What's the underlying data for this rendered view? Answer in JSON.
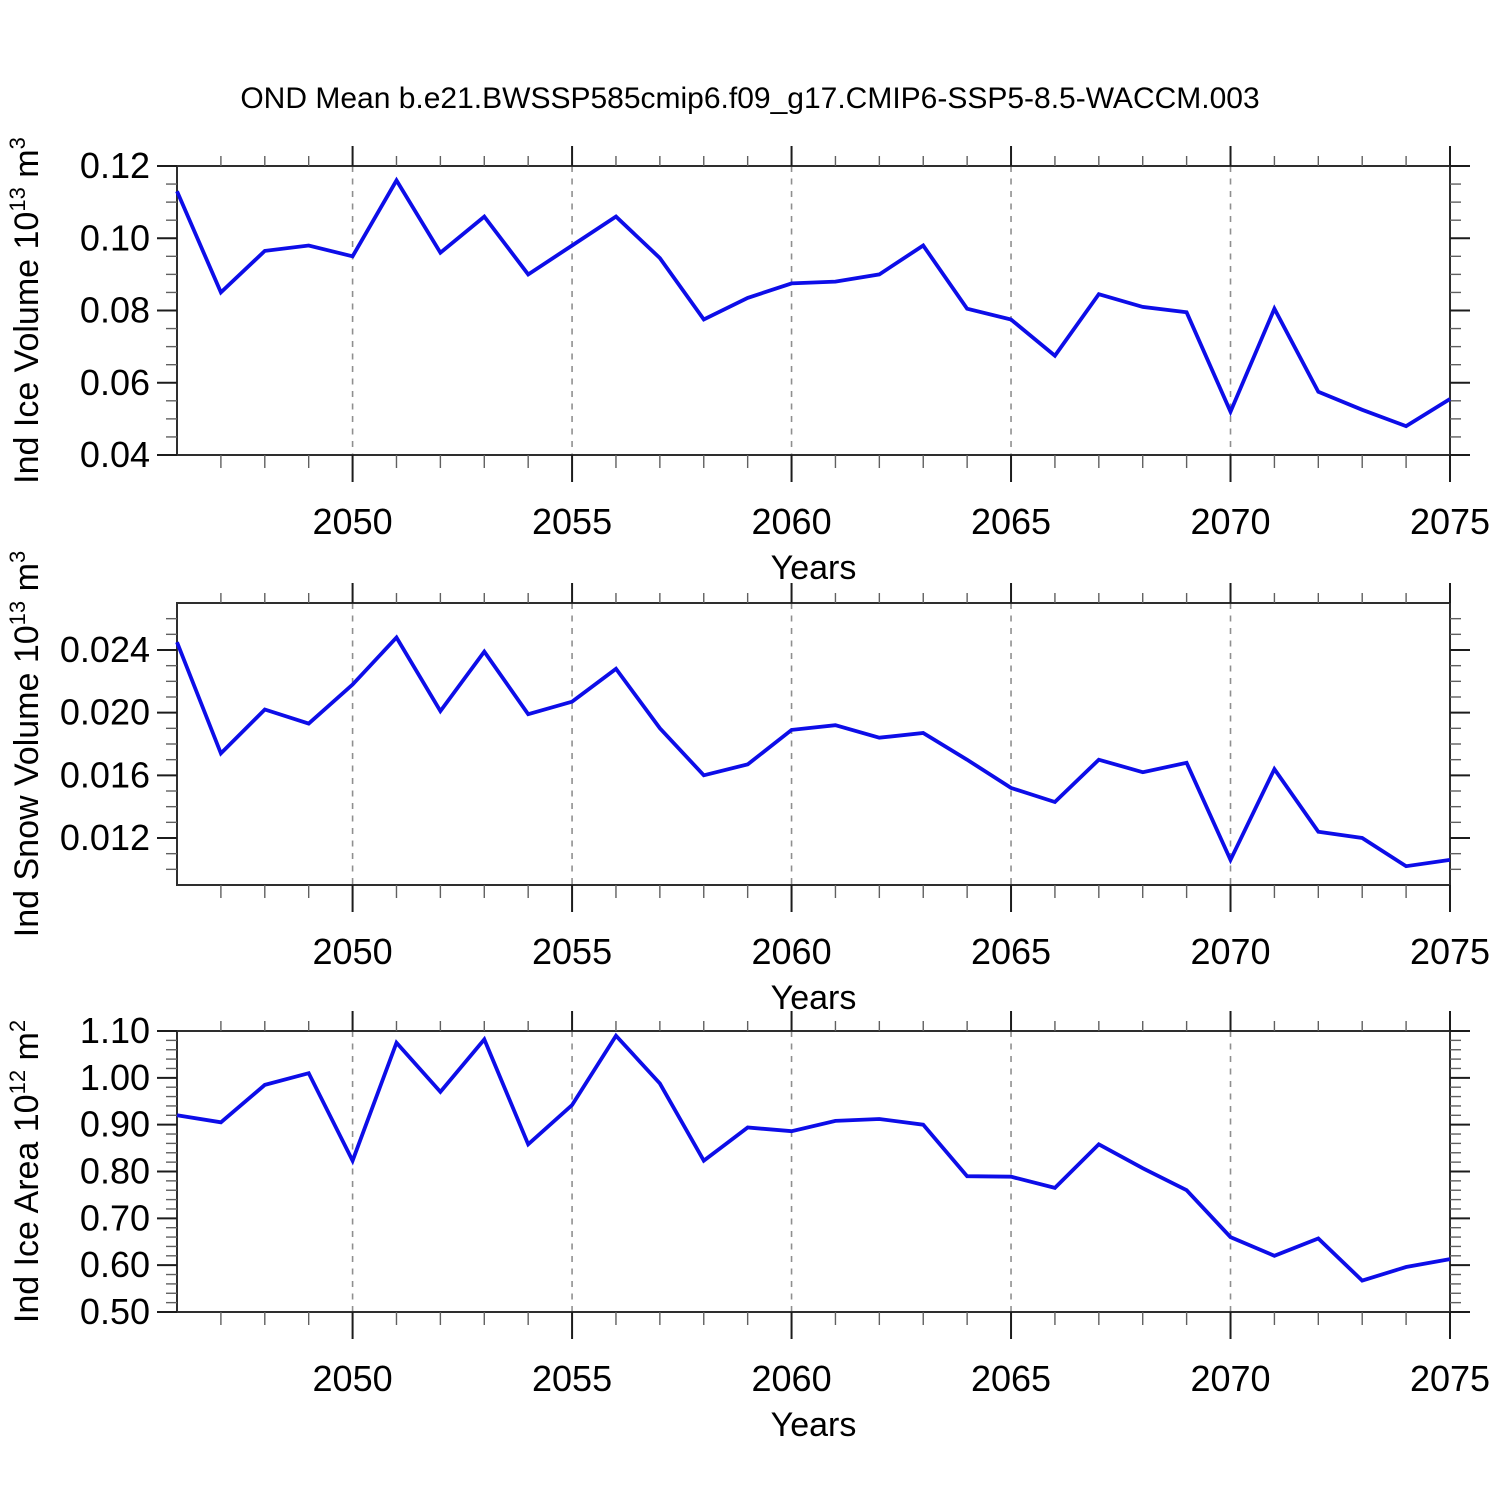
{
  "title": "OND Mean b.e21.BWSSP585cmip6.f09_g17.CMIP6-SSP5-8.5-WACCM.003",
  "colors": {
    "line": "#0d0de8",
    "frame": "#2e2e2e",
    "grid": "#8f8f8f",
    "text": "#000000"
  },
  "chart_data": [
    {
      "type": "line",
      "xlabel": "Years",
      "ylabel_text": "Ind Ice Volume 10^13 m^3",
      "ylabel_segments": [
        {
          "t": "Ind Ice Volume 10"
        },
        {
          "t": "13",
          "sup": true
        },
        {
          "t": " m"
        },
        {
          "t": "3",
          "sup": true
        }
      ],
      "x": [
        2046,
        2047,
        2048,
        2049,
        2050,
        2051,
        2052,
        2053,
        2054,
        2055,
        2056,
        2057,
        2058,
        2059,
        2060,
        2061,
        2062,
        2063,
        2064,
        2065,
        2066,
        2067,
        2068,
        2069,
        2070,
        2071,
        2072,
        2073,
        2074,
        2075
      ],
      "values": [
        0.113,
        0.085,
        0.0965,
        0.098,
        0.095,
        0.116,
        0.096,
        0.106,
        0.09,
        0.098,
        0.106,
        0.0945,
        0.0775,
        0.0835,
        0.0875,
        0.088,
        0.09,
        0.098,
        0.0805,
        0.0775,
        0.0675,
        0.0845,
        0.081,
        0.0795,
        0.052,
        0.0805,
        0.0575,
        0.0525,
        0.048,
        0.0555
      ],
      "xlim": [
        2046,
        2075
      ],
      "ylim": [
        0.04,
        0.12
      ],
      "xticks": [
        2050,
        2055,
        2060,
        2065,
        2070,
        2075
      ],
      "xtick_labels": [
        "2050",
        "2055",
        "2060",
        "2065",
        "2070",
        "2075"
      ],
      "x_minor_step": 1,
      "yticks": [
        0.04,
        0.06,
        0.08,
        0.1,
        0.12
      ],
      "ytick_labels": [
        "0.04",
        "0.06",
        "0.08",
        "0.10",
        "0.12"
      ],
      "y_minor_step": 0.005,
      "grid_x": [
        2050,
        2055,
        2060,
        2065,
        2070
      ],
      "grid_style": "vertical-dashed",
      "legend": "none"
    },
    {
      "type": "line",
      "xlabel": "Years",
      "ylabel_text": "Ind Snow Volume 10^13 m^3",
      "ylabel_segments": [
        {
          "t": "Ind Snow Volume 10"
        },
        {
          "t": "13",
          "sup": true
        },
        {
          "t": " m"
        },
        {
          "t": "3",
          "sup": true
        }
      ],
      "x": [
        2046,
        2047,
        2048,
        2049,
        2050,
        2051,
        2052,
        2053,
        2054,
        2055,
        2056,
        2057,
        2058,
        2059,
        2060,
        2061,
        2062,
        2063,
        2064,
        2065,
        2066,
        2067,
        2068,
        2069,
        2070,
        2071,
        2072,
        2073,
        2074,
        2075
      ],
      "values": [
        0.0245,
        0.0174,
        0.0202,
        0.0193,
        0.0218,
        0.0248,
        0.0201,
        0.0239,
        0.0199,
        0.0207,
        0.0228,
        0.019,
        0.016,
        0.0167,
        0.0189,
        0.0192,
        0.0184,
        0.0187,
        0.017,
        0.0152,
        0.0143,
        0.017,
        0.0162,
        0.0168,
        0.0106,
        0.0164,
        0.0124,
        0.012,
        0.0102,
        0.0106
      ],
      "xlim": [
        2046,
        2075
      ],
      "ylim": [
        0.009,
        0.027
      ],
      "xticks": [
        2050,
        2055,
        2060,
        2065,
        2070,
        2075
      ],
      "xtick_labels": [
        "2050",
        "2055",
        "2060",
        "2065",
        "2070",
        "2075"
      ],
      "x_minor_step": 1,
      "yticks": [
        0.012,
        0.016,
        0.02,
        0.024
      ],
      "ytick_labels": [
        "0.012",
        "0.016",
        "0.020",
        "0.024"
      ],
      "y_minor_step": 0.001,
      "grid_x": [
        2050,
        2055,
        2060,
        2065,
        2070
      ],
      "grid_style": "vertical-dashed",
      "legend": "none"
    },
    {
      "type": "line",
      "xlabel": "Years",
      "ylabel_text": "Ind Ice Area 10^12 m^2",
      "ylabel_segments": [
        {
          "t": "Ind Ice Area 10"
        },
        {
          "t": "12",
          "sup": true
        },
        {
          "t": " m"
        },
        {
          "t": "2",
          "sup": true
        }
      ],
      "x": [
        2046,
        2047,
        2048,
        2049,
        2050,
        2051,
        2052,
        2053,
        2054,
        2055,
        2056,
        2057,
        2058,
        2059,
        2060,
        2061,
        2062,
        2063,
        2064,
        2065,
        2066,
        2067,
        2068,
        2069,
        2070,
        2071,
        2072,
        2073,
        2074,
        2075
      ],
      "values": [
        0.92,
        0.905,
        0.985,
        1.01,
        0.823,
        1.075,
        0.97,
        1.082,
        0.858,
        0.942,
        1.09,
        0.988,
        0.823,
        0.894,
        0.886,
        0.908,
        0.912,
        0.9,
        0.79,
        0.789,
        0.765,
        0.858,
        0.807,
        0.76,
        0.66,
        0.62,
        0.657,
        0.567,
        0.596,
        0.613
      ],
      "xlim": [
        2046,
        2075
      ],
      "ylim": [
        0.5,
        1.1
      ],
      "xticks": [
        2050,
        2055,
        2060,
        2065,
        2070,
        2075
      ],
      "xtick_labels": [
        "2050",
        "2055",
        "2060",
        "2065",
        "2070",
        "2075"
      ],
      "x_minor_step": 1,
      "yticks": [
        0.5,
        0.6,
        0.7,
        0.8,
        0.9,
        1.0,
        1.1
      ],
      "ytick_labels": [
        "0.50",
        "0.60",
        "0.70",
        "0.80",
        "0.90",
        "1.00",
        "1.10"
      ],
      "y_minor_step": 0.02,
      "grid_x": [
        2050,
        2055,
        2060,
        2065,
        2070
      ],
      "grid_style": "vertical-dashed",
      "legend": "none"
    }
  ]
}
